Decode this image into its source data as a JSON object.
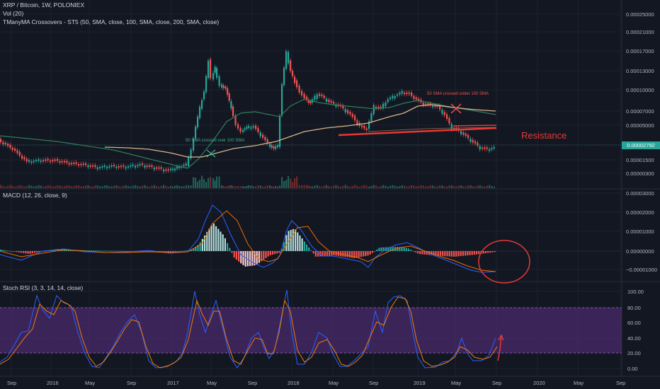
{
  "header": {
    "title": "XRP / Bitcoin, 1W, POLONIEX",
    "volume_label": "Vol (20)",
    "ma_label": "TManyMA Crossovers - ST5 (50, SMA, close, 100, SMA, close, 200, SMA, close)"
  },
  "price_axis": {
    "ticks": [
      "0.00025000",
      "0.00021000",
      "0.00017000",
      "0.00013000",
      "0.00010000",
      "0.00007000",
      "0.00005000",
      "0.00002792",
      "0.00001500",
      "0.00000300"
    ],
    "current_price": "0.00002792"
  },
  "macd": {
    "label": "MACD (12, 26, close, 9)",
    "ticks": [
      "0.00003000",
      "0.00002000",
      "0.00001000",
      "0.00000000",
      "−0.00001000"
    ]
  },
  "stoch": {
    "label": "Stoch RSI (3, 3, 14, 14, close)",
    "ticks": [
      "100.00",
      "80.00",
      "60.00",
      "40.00",
      "20.00",
      "0.00"
    ]
  },
  "time_axis": {
    "ticks": [
      "Sep",
      "2016",
      "May",
      "Sep",
      "2017",
      "May",
      "Sep",
      "2018",
      "May",
      "Sep",
      "2019",
      "May",
      "Sep",
      "2020",
      "May",
      "Sep"
    ]
  },
  "annotations": {
    "cross_over": "50 SMA crossed over 100 SMA",
    "cross_under": "50 SMA crossed under 100 SMA",
    "resistance": "Resistance"
  },
  "colors": {
    "background": "#131722",
    "up": "#26a69a",
    "down": "#ef5350",
    "sma50": "#2e7d5b",
    "sma100": "#d8b48a",
    "resistance": "#e53935",
    "stoch_k": "#2962ff",
    "stoch_d": "#f57c00",
    "stoch_band": "#4a2a6b"
  }
}
